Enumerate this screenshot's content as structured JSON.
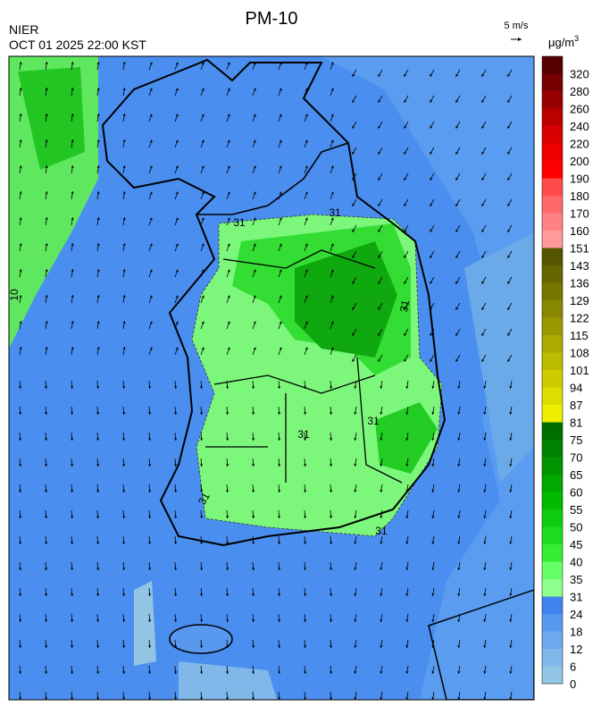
{
  "header": {
    "title": "PM-10",
    "agency": "NIER",
    "timestamp": "OCT 01 2025 22:00 KST"
  },
  "wind_scale": {
    "label": "5 m/s"
  },
  "legend": {
    "unit_base": "μg/m",
    "unit_superscript": "3",
    "levels": [
      0,
      6,
      12,
      18,
      24,
      31,
      35,
      40,
      45,
      50,
      55,
      60,
      65,
      70,
      75,
      81,
      87,
      94,
      101,
      108,
      115,
      122,
      129,
      136,
      143,
      151,
      160,
      170,
      180,
      190,
      200,
      220,
      240,
      260,
      280,
      320
    ],
    "colors": [
      "#92c5e3",
      "#80b8ea",
      "#6ca8ec",
      "#5898ef",
      "#3f84f0",
      "#8cff8c",
      "#66ff66",
      "#33ee33",
      "#1fdc1f",
      "#0fcc0f",
      "#00bb00",
      "#00a800",
      "#009500",
      "#008200",
      "#006f00",
      "#eeee00",
      "#dddd00",
      "#cccc00",
      "#bbbb00",
      "#aaaa00",
      "#999900",
      "#888800",
      "#777700",
      "#666600",
      "#555500",
      "#ff9a9a",
      "#ff8282",
      "#ff6868",
      "#ff4a4a",
      "#ff0000",
      "#ee0000",
      "#d80000",
      "#bb0000",
      "#990000",
      "#770000",
      "#550000"
    ]
  },
  "contour_labels": [
    "31",
    "31",
    "31",
    "31",
    "31",
    "31",
    "31",
    "10"
  ]
}
